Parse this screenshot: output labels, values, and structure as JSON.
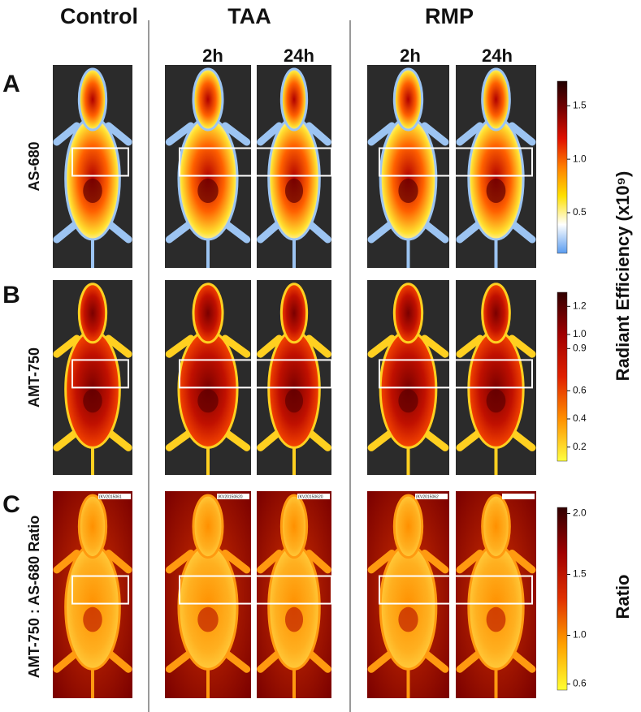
{
  "columns": [
    {
      "label": "Control"
    },
    {
      "label": "TAA"
    },
    {
      "label": "RMP"
    }
  ],
  "timepoints": [
    "2h",
    "24h",
    "2h",
    "24h"
  ],
  "rows": [
    {
      "letter": "A",
      "label": "AS-680"
    },
    {
      "letter": "B",
      "label": "AMT-750"
    },
    {
      "letter": "C",
      "label": "AMT-750 : AS-680 Ratio"
    }
  ],
  "radiant_label": "Radiant Efficiency (x10⁹)",
  "ratio_label": "Ratio",
  "colorbars": [
    {
      "ylim": [
        0.12,
        1.73
      ],
      "yticks": [
        {
          "value": 1.5,
          "label": "1.5"
        },
        {
          "value": 1,
          "label": "1.0"
        },
        {
          "value": 0.5,
          "label": "0.5"
        }
      ],
      "colors": [
        "#5a9cf0",
        "#ffffff",
        "#ffe000",
        "#ff8000",
        "#e01000",
        "#7a0000",
        "#200000"
      ]
    },
    {
      "ylim": [
        0.1,
        1.3
      ],
      "yticks": [
        1.2,
        {
          "value": 1,
          "label": "1.0"
        },
        0.9,
        0.6,
        0.4,
        0.2
      ],
      "colors": [
        "#ffff40",
        "#ff9000",
        "#e02000",
        "#a00000",
        "#300000"
      ]
    },
    {
      "ylim": [
        0.55,
        2.05
      ],
      "yticks": [
        {
          "value": 2,
          "label": "2.0"
        },
        1.5,
        {
          "value": 1,
          "label": "1.0"
        },
        0.6
      ],
      "colors": [
        "#ffff30",
        "#ffa000",
        "#e03000",
        "#a00000",
        "#300000"
      ]
    }
  ],
  "image_tags": [
    "(KV2015061",
    "(KV20150620",
    "(KV20150620",
    "(KV2015062"
  ]
}
